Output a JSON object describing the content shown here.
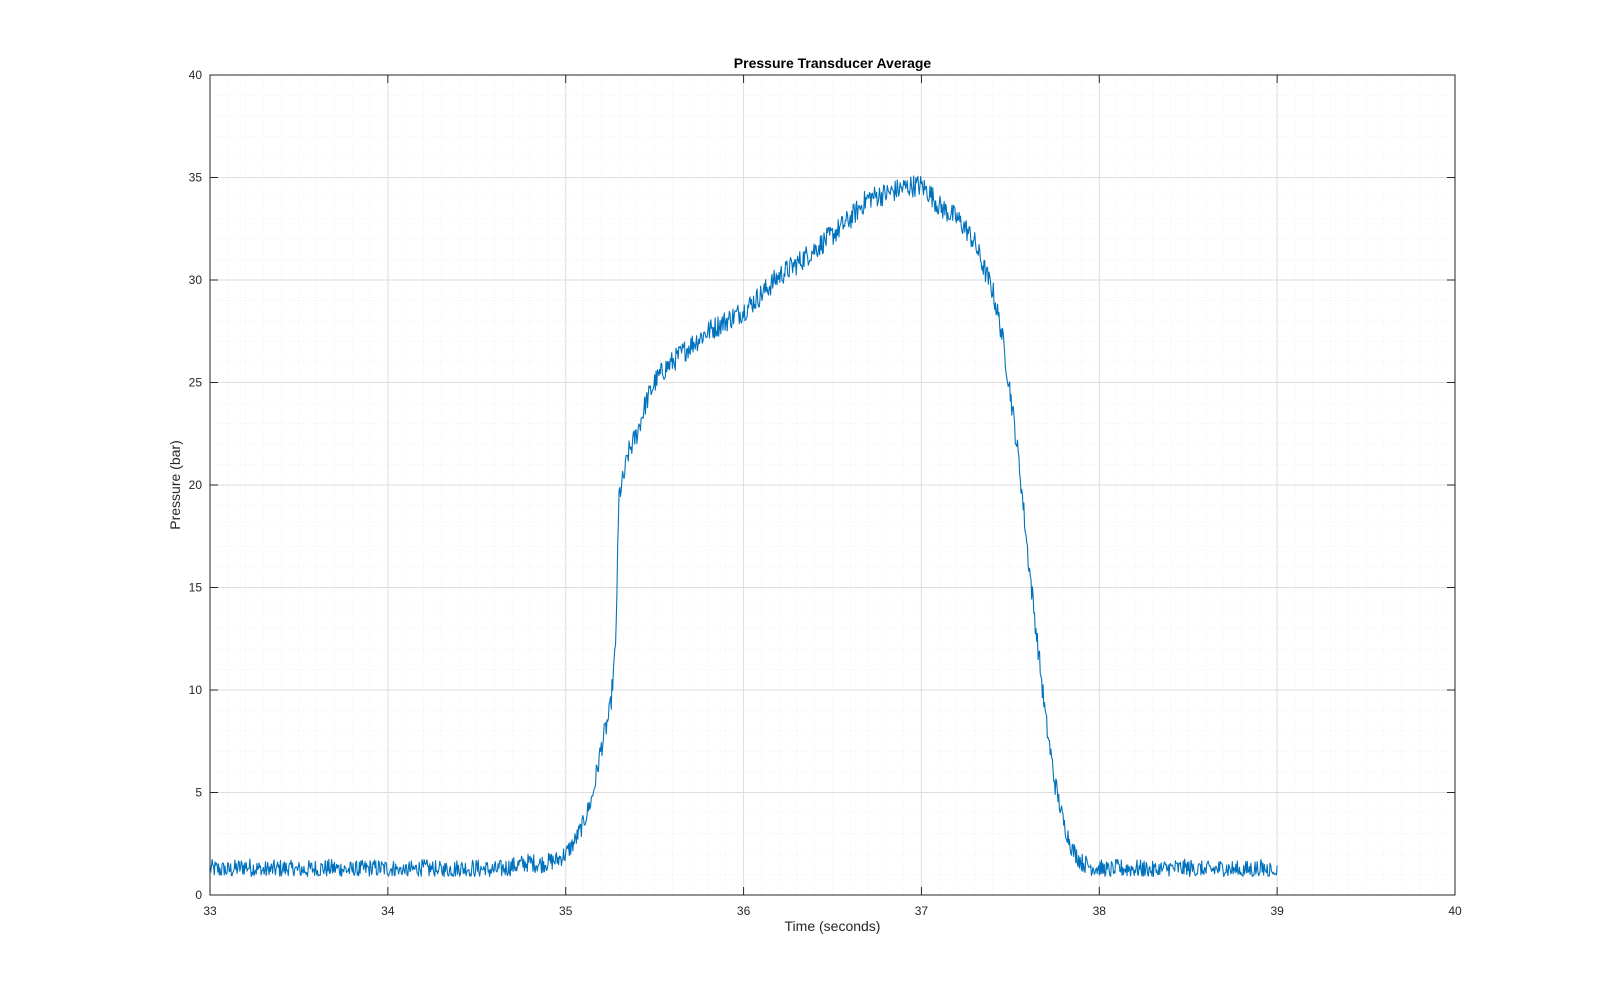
{
  "chart_data": {
    "type": "line",
    "title": "Pressure Transducer Average",
    "xlabel": "Time (seconds)",
    "ylabel": "Pressure (bar)",
    "xlim": [
      33,
      40
    ],
    "ylim": [
      0,
      40
    ],
    "x_ticks": [
      33,
      34,
      35,
      36,
      37,
      38,
      39,
      40
    ],
    "y_ticks": [
      0,
      5,
      10,
      15,
      20,
      25,
      30,
      35,
      40
    ],
    "x_tick_labels": [
      "33",
      "34",
      "35",
      "36",
      "37",
      "38",
      "39",
      "40"
    ],
    "y_tick_labels": [
      "0",
      "5",
      "10",
      "15",
      "20",
      "25",
      "30",
      "35",
      "40"
    ],
    "grid": "major and minor",
    "legend": "none",
    "colors": {
      "line": "#0072BD",
      "major_grid": "#DEDEDE",
      "minor_grid": "#EDEDED",
      "axes": "#262626"
    },
    "series": [
      {
        "x": [
          33.0,
          33.1,
          33.2,
          33.3,
          33.4,
          33.5,
          33.6,
          33.7,
          33.8,
          33.9,
          34.0,
          34.1,
          34.2,
          34.3,
          34.4,
          34.5,
          34.6,
          34.7,
          34.75,
          34.8,
          34.85,
          34.9,
          34.95,
          35.0,
          35.05,
          35.1,
          35.15,
          35.2,
          35.25,
          35.28,
          35.3,
          35.33,
          35.35,
          35.4,
          35.45,
          35.5,
          35.55,
          35.6,
          35.7,
          35.8,
          35.9,
          36.0,
          36.1,
          36.2,
          36.3,
          36.4,
          36.5,
          36.6,
          36.65,
          36.7,
          36.8,
          36.9,
          36.95,
          37.0,
          37.05,
          37.1,
          37.15,
          37.2,
          37.25,
          37.3,
          37.35,
          37.4,
          37.45,
          37.5,
          37.55,
          37.6,
          37.65,
          37.7,
          37.75,
          37.8,
          37.85,
          37.9,
          37.95,
          38.0,
          38.05,
          38.1,
          38.2,
          38.3,
          38.4,
          38.5,
          38.6,
          38.7,
          38.8,
          38.9,
          39.0
        ],
        "y": [
          1.3,
          1.2,
          1.4,
          1.2,
          1.3,
          1.2,
          1.3,
          1.3,
          1.2,
          1.3,
          1.3,
          1.2,
          1.3,
          1.2,
          1.3,
          1.3,
          1.2,
          1.4,
          1.5,
          1.6,
          1.5,
          1.6,
          1.7,
          2.0,
          2.6,
          3.5,
          4.8,
          7.2,
          9.0,
          12.0,
          19.5,
          20.5,
          21.5,
          22.5,
          24.0,
          25.0,
          25.6,
          26.0,
          26.8,
          27.5,
          28.0,
          28.5,
          29.3,
          30.2,
          30.8,
          31.5,
          32.2,
          33.0,
          33.5,
          34.0,
          34.2,
          34.5,
          34.6,
          34.6,
          34.2,
          33.6,
          33.3,
          33.0,
          32.5,
          31.8,
          30.6,
          29.5,
          27.5,
          24.5,
          21.0,
          16.5,
          12.5,
          8.5,
          5.5,
          3.5,
          2.2,
          1.6,
          1.4,
          1.3,
          1.2,
          1.3,
          1.3,
          1.2,
          1.3,
          1.3,
          1.2,
          1.3,
          1.2,
          1.3,
          1.2
        ]
      }
    ]
  }
}
